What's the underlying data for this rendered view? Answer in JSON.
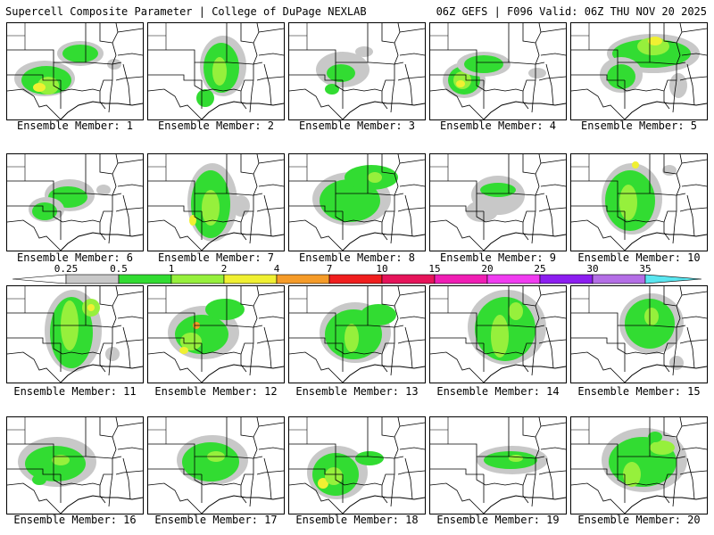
{
  "header": {
    "left": "Supercell Composite Parameter | College of DuPage NEXLAB",
    "right": "06Z GEFS | F096 Valid: 06Z THU NOV 20 2025"
  },
  "colorbar": {
    "labels": [
      "0.25",
      "0.5",
      "1",
      "2",
      "4",
      "7",
      "10",
      "15",
      "20",
      "25",
      "30",
      "35"
    ],
    "colors": [
      "#c8c8c8",
      "#32dc32",
      "#96f03c",
      "#f0f032",
      "#f59b28",
      "#f01e1e",
      "#e6145a",
      "#f01eb4",
      "#f03cf0",
      "#8c1ef0",
      "#b46ee6",
      "#5ae6f0"
    ]
  },
  "panels": [
    {
      "label": "Ensemble Member: 1"
    },
    {
      "label": "Ensemble Member: 2"
    },
    {
      "label": "Ensemble Member: 3"
    },
    {
      "label": "Ensemble Member: 4"
    },
    {
      "label": "Ensemble Member: 5"
    },
    {
      "label": "Ensemble Member: 6"
    },
    {
      "label": "Ensemble Member: 7"
    },
    {
      "label": "Ensemble Member: 8"
    },
    {
      "label": "Ensemble Member: 9"
    },
    {
      "label": "Ensemble Member: 10"
    },
    {
      "label": "Ensemble Member: 11"
    },
    {
      "label": "Ensemble Member: 12"
    },
    {
      "label": "Ensemble Member: 13"
    },
    {
      "label": "Ensemble Member: 14"
    },
    {
      "label": "Ensemble Member: 15"
    },
    {
      "label": "Ensemble Member: 16"
    },
    {
      "label": "Ensemble Member: 17"
    },
    {
      "label": "Ensemble Member: 18"
    },
    {
      "label": "Ensemble Member: 19"
    },
    {
      "label": "Ensemble Member: 20"
    }
  ]
}
